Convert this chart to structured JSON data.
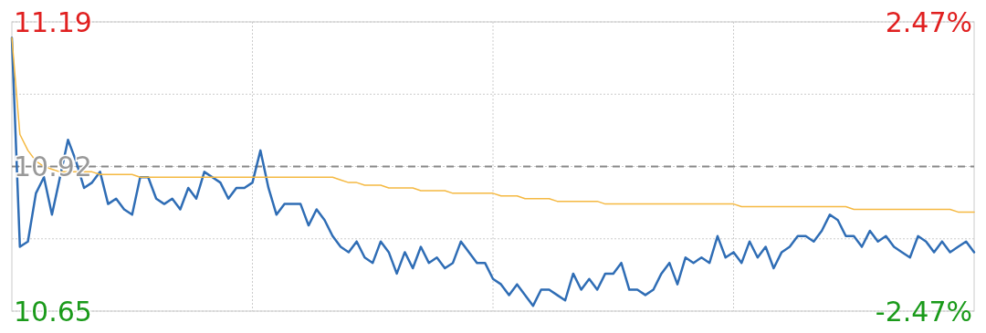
{
  "chart_data": {
    "type": "line",
    "categories": [
      null,
      null,
      null,
      null,
      null,
      null,
      null,
      null,
      null,
      null,
      null,
      null,
      null,
      null,
      null,
      null,
      null,
      null,
      null,
      null,
      null,
      null,
      null,
      null,
      null,
      null,
      null,
      null,
      null,
      null,
      null,
      null,
      null,
      null,
      null,
      null,
      null,
      null,
      null,
      null,
      null,
      null,
      null,
      null,
      null,
      null,
      null,
      null,
      null,
      null,
      null,
      null,
      null,
      null,
      null,
      null,
      null,
      null,
      null,
      null,
      null,
      null,
      null,
      null,
      null,
      null,
      null,
      null,
      null,
      null,
      null,
      null,
      null,
      null,
      null,
      null,
      null,
      null,
      null,
      null,
      null,
      null,
      null,
      null,
      null,
      null,
      null,
      null,
      null,
      null,
      null,
      null,
      null,
      null,
      null,
      null,
      null,
      null,
      null,
      null,
      null,
      null,
      null,
      null,
      null,
      null,
      null,
      null,
      null,
      null,
      null,
      null,
      null,
      null,
      null,
      null,
      null,
      null,
      null,
      null,
      null
    ],
    "ylim": [
      10.65,
      11.19
    ],
    "yticks": [
      10.65,
      {
        "value": 10.785,
        "label": null
      },
      10.92,
      {
        "value": 11.055,
        "label": null
      },
      11.19
    ],
    "y2lim": [
      -2.47,
      2.47
    ],
    "y2ticks": [
      {
        "value": -2.47,
        "label": "-2.47%"
      },
      {
        "value": 2.47,
        "label": "2.47%"
      }
    ],
    "grid": true,
    "marker": "none",
    "line_style": "solid",
    "ref_lines": [
      {
        "axis": "y",
        "value": 10.92,
        "color": "#888888",
        "line_style": "dashed"
      }
    ],
    "series": [
      {
        "color": "#2f6db5",
        "values": [
          11.16,
          10.77,
          10.78,
          10.87,
          10.9,
          10.83,
          10.9,
          10.97,
          10.93,
          10.88,
          10.89,
          10.91,
          10.85,
          10.86,
          10.84,
          10.83,
          10.9,
          10.9,
          10.86,
          10.85,
          10.86,
          10.84,
          10.88,
          10.86,
          10.91,
          10.9,
          10.89,
          10.86,
          10.88,
          10.88,
          10.89,
          10.95,
          10.88,
          10.83,
          10.85,
          10.85,
          10.85,
          10.81,
          10.84,
          10.82,
          10.79,
          10.77,
          10.76,
          10.78,
          10.75,
          10.74,
          10.78,
          10.76,
          10.72,
          10.76,
          10.73,
          10.77,
          10.74,
          10.75,
          10.73,
          10.74,
          10.78,
          10.76,
          10.74,
          10.74,
          10.71,
          10.7,
          10.68,
          10.7,
          10.68,
          10.66,
          10.69,
          10.69,
          10.68,
          10.67,
          10.72,
          10.69,
          10.71,
          10.69,
          10.72,
          10.72,
          10.74,
          10.69,
          10.69,
          10.68,
          10.69,
          10.72,
          10.74,
          10.7,
          10.75,
          10.74,
          10.75,
          10.74,
          10.79,
          10.75,
          10.76,
          10.74,
          10.78,
          10.75,
          10.77,
          10.73,
          10.76,
          10.77,
          10.79,
          10.79,
          10.78,
          10.8,
          10.83,
          10.82,
          10.79,
          10.79,
          10.77,
          10.8,
          10.78,
          10.79,
          10.77,
          10.76,
          10.75,
          10.79,
          10.78,
          10.76,
          10.78,
          10.76,
          10.77,
          10.78,
          10.76
        ]
      },
      {
        "color": "#f5b942",
        "values": [
          11.16,
          10.98,
          10.95,
          10.93,
          10.92,
          10.915,
          10.91,
          10.91,
          10.91,
          10.91,
          10.91,
          10.905,
          10.905,
          10.905,
          10.905,
          10.905,
          10.9,
          10.9,
          10.9,
          10.9,
          10.9,
          10.9,
          10.9,
          10.9,
          10.9,
          10.9,
          10.9,
          10.9,
          10.9,
          10.9,
          10.9,
          10.9,
          10.9,
          10.9,
          10.9,
          10.9,
          10.9,
          10.9,
          10.9,
          10.9,
          10.9,
          10.895,
          10.89,
          10.89,
          10.885,
          10.885,
          10.885,
          10.88,
          10.88,
          10.88,
          10.88,
          10.875,
          10.875,
          10.875,
          10.875,
          10.87,
          10.87,
          10.87,
          10.87,
          10.87,
          10.87,
          10.865,
          10.865,
          10.865,
          10.86,
          10.86,
          10.86,
          10.86,
          10.855,
          10.855,
          10.855,
          10.855,
          10.855,
          10.855,
          10.85,
          10.85,
          10.85,
          10.85,
          10.85,
          10.85,
          10.85,
          10.85,
          10.85,
          10.85,
          10.85,
          10.85,
          10.85,
          10.85,
          10.85,
          10.85,
          10.85,
          10.845,
          10.845,
          10.845,
          10.845,
          10.845,
          10.845,
          10.845,
          10.845,
          10.845,
          10.845,
          10.845,
          10.845,
          10.845,
          10.845,
          10.84,
          10.84,
          10.84,
          10.84,
          10.84,
          10.84,
          10.84,
          10.84,
          10.84,
          10.84,
          10.84,
          10.84,
          10.84,
          10.835,
          10.835,
          10.835
        ]
      }
    ]
  }
}
